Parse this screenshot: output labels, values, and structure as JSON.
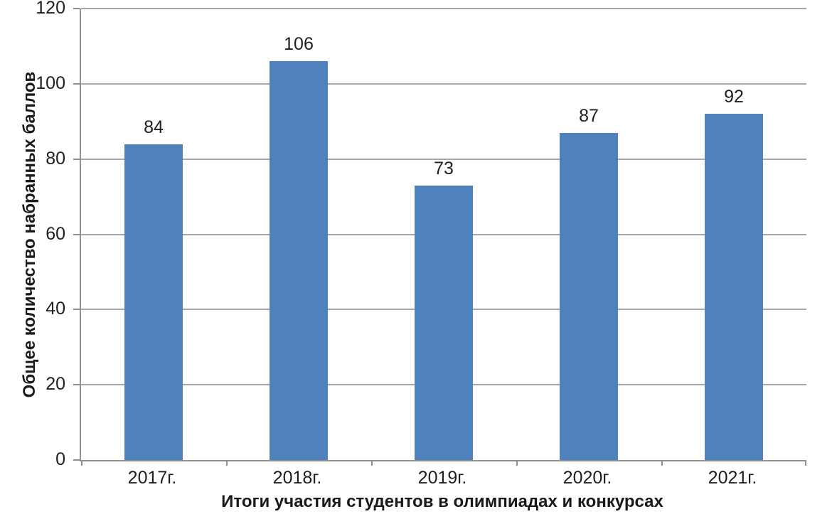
{
  "chart_data": {
    "type": "bar",
    "categories": [
      "2017г.",
      "2018г.",
      "2019г.",
      "2020г.",
      "2021г."
    ],
    "values": [
      84,
      106,
      73,
      87,
      92
    ],
    "title": "",
    "xlabel": "Итоги участия студентов в олимпиадах и конкурсах",
    "ylabel": "Общее количество набранных баллов",
    "ylim": [
      0,
      120
    ],
    "yticks": [
      0,
      20,
      40,
      60,
      80,
      100,
      120
    ],
    "grid": true,
    "legend": "none",
    "data_labels": true,
    "bar_color": "#4f81bd",
    "gridline_color": "#a6a6a6",
    "axis_color": "#8f8f8f",
    "text_color": "#1f1f1f"
  }
}
